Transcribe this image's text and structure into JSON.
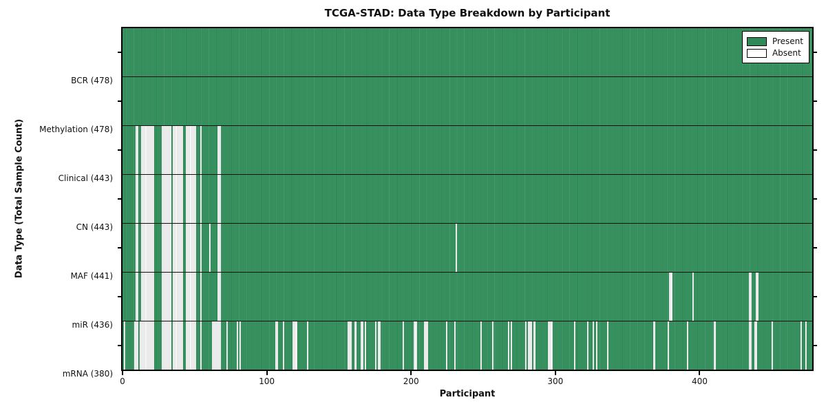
{
  "title": "TCGA-STAD: Data Type Breakdown by Participant",
  "colors": {
    "present": "#2e8b57",
    "present_line": "#4f9e73",
    "absent": "#fafafa",
    "absent_line": "#bdbdbd",
    "border": "#000000"
  },
  "legend": {
    "items": [
      {
        "label": "Present",
        "swatch": "#2e8b57"
      },
      {
        "label": "Absent",
        "swatch": "#ffffff"
      }
    ]
  },
  "chart_data": {
    "type": "heatmap",
    "title": "TCGA-STAD: Data Type Breakdown by Participant",
    "xlabel": "Participant",
    "ylabel": "Data Type (Total Sample Count)",
    "xlim": [
      0,
      478
    ],
    "x_ticks": [
      0,
      100,
      200,
      300,
      400
    ],
    "n_participants": 478,
    "legend_entries": [
      "Present",
      "Absent"
    ],
    "legend_position": "upper right",
    "grid": false,
    "rows": [
      {
        "name": "bcr",
        "label": "BCR (478)",
        "present_count": 478,
        "absent": []
      },
      {
        "name": "methylation",
        "label": "Methylation (478)",
        "present_count": 478,
        "absent": []
      },
      {
        "name": "clinical",
        "label": "Clinical (443)",
        "present_count": 443,
        "absent": [
          9,
          10,
          13,
          14,
          15,
          16,
          17,
          18,
          19,
          20,
          21,
          27,
          28,
          29,
          30,
          31,
          32,
          33,
          35,
          36,
          37,
          38,
          39,
          40,
          41,
          44,
          45,
          46,
          47,
          48,
          49,
          50,
          54,
          66,
          67
        ]
      },
      {
        "name": "cn",
        "label": "CN (443)",
        "present_count": 443,
        "absent": [
          9,
          10,
          13,
          14,
          15,
          16,
          17,
          18,
          19,
          20,
          21,
          27,
          28,
          29,
          30,
          31,
          32,
          33,
          35,
          36,
          37,
          38,
          39,
          40,
          41,
          44,
          45,
          46,
          47,
          48,
          49,
          50,
          54,
          66,
          67
        ]
      },
      {
        "name": "maf",
        "label": "MAF (441)",
        "present_count": 441,
        "absent": [
          9,
          10,
          13,
          14,
          15,
          16,
          17,
          18,
          19,
          20,
          21,
          27,
          28,
          29,
          30,
          31,
          32,
          33,
          35,
          36,
          37,
          38,
          39,
          40,
          41,
          44,
          45,
          46,
          47,
          48,
          49,
          50,
          54,
          60,
          66,
          67,
          231
        ]
      },
      {
        "name": "mir",
        "label": "miR (436)",
        "present_count": 436,
        "absent": [
          9,
          10,
          13,
          14,
          15,
          16,
          17,
          18,
          19,
          20,
          21,
          27,
          28,
          29,
          30,
          31,
          32,
          33,
          35,
          36,
          37,
          38,
          39,
          40,
          41,
          44,
          45,
          46,
          47,
          48,
          49,
          50,
          54,
          66,
          67,
          379,
          380,
          395,
          434,
          435,
          439,
          440
        ]
      },
      {
        "name": "mrna",
        "label": "mRNA (380)",
        "present_count": 380,
        "absent": [
          1,
          8,
          9,
          10,
          12,
          13,
          14,
          15,
          16,
          17,
          18,
          19,
          20,
          21,
          27,
          28,
          29,
          30,
          31,
          32,
          33,
          35,
          36,
          37,
          38,
          39,
          40,
          41,
          44,
          45,
          46,
          47,
          48,
          49,
          50,
          54,
          62,
          63,
          64,
          65,
          66,
          67,
          72,
          79,
          81,
          106,
          107,
          111,
          118,
          119,
          120,
          128,
          156,
          157,
          158,
          161,
          165,
          166,
          168,
          175,
          177,
          178,
          194,
          202,
          203,
          209,
          210,
          211,
          224,
          230,
          248,
          256,
          267,
          269,
          279,
          281,
          282,
          283,
          285,
          295,
          296,
          297,
          313,
          322,
          326,
          328,
          336,
          368,
          378,
          391,
          410,
          434,
          435,
          438,
          439,
          450,
          470,
          473
        ]
      }
    ]
  }
}
